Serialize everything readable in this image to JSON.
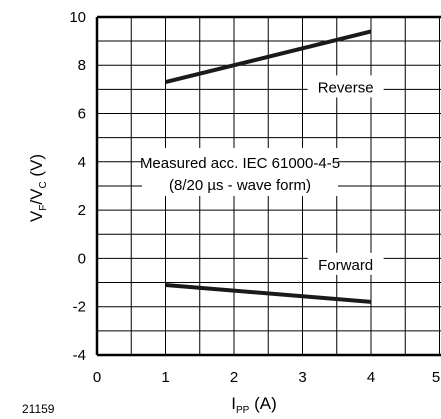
{
  "figure_id": "21159",
  "chart_data": {
    "type": "line",
    "x_label": {
      "main": "I",
      "sub": "PP",
      "unit": " (A)"
    },
    "y_label": {
      "v1": "V",
      "s1": "F",
      "slash": "/V",
      "s2": "C",
      "unit": " (V)"
    },
    "xlim": [
      0,
      5
    ],
    "ylim": [
      -4,
      10
    ],
    "x_ticks": [
      "0",
      "1",
      "2",
      "3",
      "4",
      "5"
    ],
    "y_ticks": [
      "-4",
      "-2",
      "0",
      "2",
      "4",
      "6",
      "8",
      "10"
    ],
    "grid": true,
    "series": [
      {
        "name": "Reverse",
        "x": [
          1,
          4
        ],
        "y": [
          7.3,
          9.4
        ]
      },
      {
        "name": "Forward",
        "x": [
          1,
          4
        ],
        "y": [
          -1.1,
          -1.8
        ]
      }
    ],
    "annotations": [
      {
        "text": "Measured acc. IEC 61000-4-5",
        "x": 2.5,
        "y": 4
      },
      {
        "text": "(8/20 µs - wave form)",
        "x": 2.5,
        "y": 3
      }
    ],
    "colors": {
      "line": "#1a1a1a",
      "grid": "#000000"
    }
  }
}
